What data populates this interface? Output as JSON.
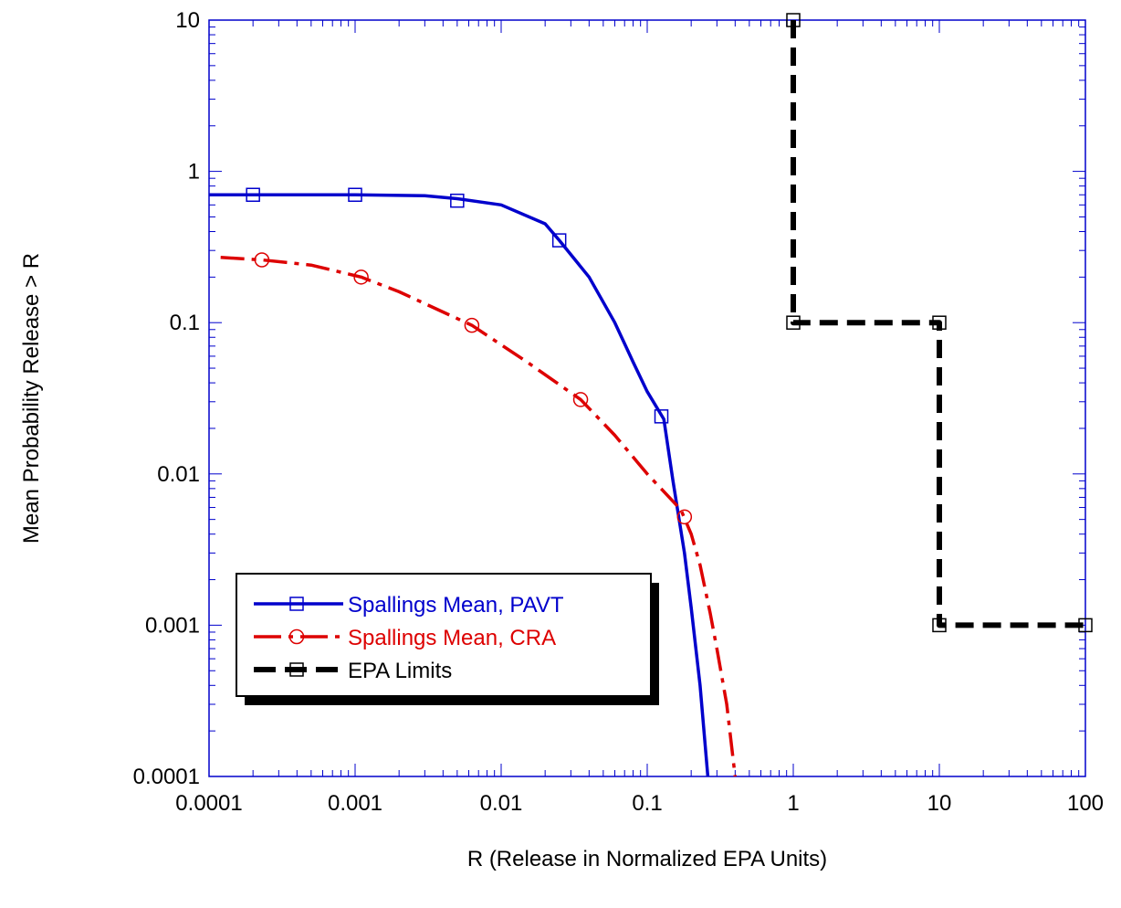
{
  "chart_data": {
    "type": "line",
    "xlabel": "R (Release in Normalized EPA Units)",
    "ylabel": "Mean Probability Release > R",
    "x_scale": "log",
    "y_scale": "log",
    "xlim": [
      0.0001,
      100
    ],
    "ylim": [
      0.0001,
      10
    ],
    "x_ticks": [
      "0.0001",
      "0.001",
      "0.01",
      "0.1",
      "1",
      "10",
      "100"
    ],
    "y_ticks": [
      "0.0001",
      "0.001",
      "0.01",
      "0.1",
      "1",
      "10"
    ],
    "grid": false,
    "legend_position": "bottom-left",
    "series": [
      {
        "name": "Spallings Mean, PAVT",
        "color": "#0000cc",
        "line_style": "solid",
        "marker": "square",
        "curve": [
          [
            0.0001,
            0.7
          ],
          [
            0.0003,
            0.7
          ],
          [
            0.001,
            0.7
          ],
          [
            0.003,
            0.69
          ],
          [
            0.005,
            0.66
          ],
          [
            0.01,
            0.6
          ],
          [
            0.02,
            0.45
          ],
          [
            0.025,
            0.35
          ],
          [
            0.04,
            0.2
          ],
          [
            0.06,
            0.1
          ],
          [
            0.08,
            0.055
          ],
          [
            0.1,
            0.035
          ],
          [
            0.13,
            0.023
          ],
          [
            0.15,
            0.009
          ],
          [
            0.18,
            0.003
          ],
          [
            0.2,
            0.0013
          ],
          [
            0.23,
            0.0004
          ],
          [
            0.26,
            0.0001
          ]
        ],
        "markers": [
          [
            0.0002,
            0.7
          ],
          [
            0.001,
            0.7
          ],
          [
            0.005,
            0.64
          ],
          [
            0.025,
            0.35
          ],
          [
            0.125,
            0.024
          ]
        ]
      },
      {
        "name": "Spallings Mean, CRA",
        "color": "#dd0000",
        "line_style": "dash-dot",
        "marker": "circle",
        "curve": [
          [
            0.00012,
            0.27
          ],
          [
            0.00023,
            0.26
          ],
          [
            0.0005,
            0.24
          ],
          [
            0.0011,
            0.2
          ],
          [
            0.002,
            0.16
          ],
          [
            0.0063,
            0.096
          ],
          [
            0.015,
            0.055
          ],
          [
            0.035,
            0.031
          ],
          [
            0.06,
            0.018
          ],
          [
            0.1,
            0.01
          ],
          [
            0.17,
            0.0058
          ],
          [
            0.2,
            0.004
          ],
          [
            0.23,
            0.0025
          ],
          [
            0.27,
            0.0012
          ],
          [
            0.3,
            0.0007
          ],
          [
            0.35,
            0.0003
          ],
          [
            0.4,
            0.0001
          ]
        ],
        "markers": [
          [
            0.00023,
            0.26
          ],
          [
            0.0011,
            0.2
          ],
          [
            0.0063,
            0.096
          ],
          [
            0.035,
            0.031
          ],
          [
            0.18,
            0.0052
          ]
        ]
      },
      {
        "name": "EPA Limits",
        "color": "#000000",
        "line_style": "dash",
        "marker": "square",
        "curve": [
          [
            1,
            10
          ],
          [
            1,
            0.1
          ],
          [
            10,
            0.1
          ],
          [
            10,
            0.001
          ],
          [
            100,
            0.001
          ]
        ],
        "markers": [
          [
            1,
            10
          ],
          [
            1,
            0.1
          ],
          [
            10,
            0.1
          ],
          [
            10,
            0.001
          ],
          [
            100,
            0.001
          ]
        ]
      }
    ]
  }
}
